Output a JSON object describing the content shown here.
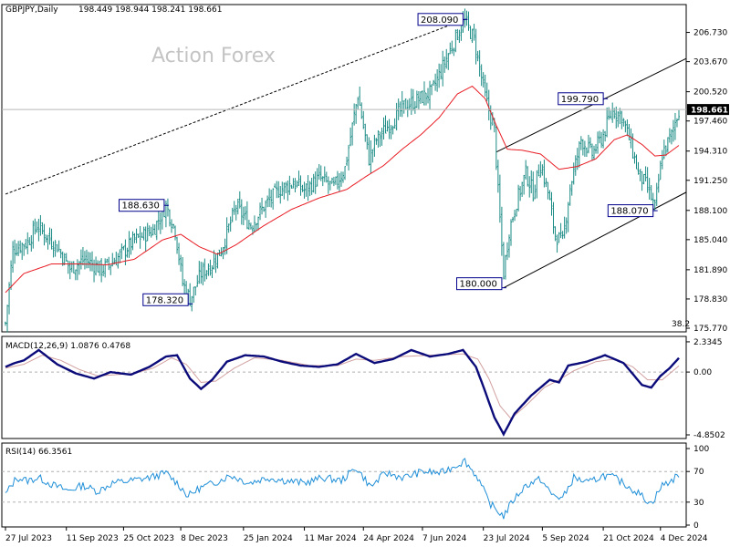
{
  "header": {
    "symbol_timeframe": "GBPJPY,Daily",
    "ohlc": "198.449 198.944 198.241 198.661"
  },
  "watermark": "Action Forex",
  "colors": {
    "price_bars": "#1a8a84",
    "ma": "#e81c24",
    "macd_main": "#0b0b7a",
    "macd_signal": "#d2a0a0",
    "rsi": "#1f8fd8",
    "trendline": "#000000",
    "current_price_bg": "#000000",
    "current_price_text": "#ffffff",
    "annotation_border": "#00008b"
  },
  "chart_data": [
    {
      "type": "candlestick",
      "panel": "price",
      "ylim": [
        175.77,
        208.5
      ],
      "yticks": [
        "206.730",
        "203.670",
        "200.520",
        "197.460",
        "194.310",
        "191.250",
        "188.100",
        "185.040",
        "181.890",
        "178.830",
        "175.770"
      ],
      "ytick_values": [
        206.73,
        203.67,
        200.52,
        197.46,
        194.31,
        191.25,
        188.1,
        185.04,
        181.89,
        178.83,
        175.77
      ],
      "current_price": "198.661",
      "current_price_value": 198.661,
      "overlay_label": "38.2",
      "x_date_labels": [
        "27 Jul 2023",
        "11 Sep 2023",
        "25 Oct 2023",
        "8 Dec 2023",
        "25 Jan 2024",
        "11 Mar 2024",
        "24 Apr 2024",
        "7 Jun 2024",
        "23 Jul 2024",
        "5 Sep 2024",
        "21 Oct 2024",
        "4 Dec 2024"
      ],
      "x_label_bar_index": [
        0,
        33,
        64,
        95,
        129,
        162,
        194,
        226,
        259,
        291,
        324,
        355
      ],
      "annotations": [
        {
          "label": "208.090",
          "bar": 249,
          "value": 208.09
        },
        {
          "label": "188.630",
          "bar": 87,
          "value": 188.63
        },
        {
          "label": "178.320",
          "bar": 100,
          "value": 178.32
        },
        {
          "label": "199.790",
          "bar": 325,
          "value": 199.79
        },
        {
          "label": "188.070",
          "bar": 352,
          "value": 188.07
        },
        {
          "label": "180.000",
          "bar": 270,
          "value": 180.0
        }
      ],
      "close_waypoints": [
        [
          0,
          176.3
        ],
        [
          4,
          184.0
        ],
        [
          12,
          184.8
        ],
        [
          17,
          186.5
        ],
        [
          28,
          184.3
        ],
        [
          35,
          182.0
        ],
        [
          43,
          183.0
        ],
        [
          52,
          181.9
        ],
        [
          60,
          183.0
        ],
        [
          70,
          185.0
        ],
        [
          80,
          186.0
        ],
        [
          87,
          188.6
        ],
        [
          92,
          186.0
        ],
        [
          96,
          180.5
        ],
        [
          100,
          178.8
        ],
        [
          106,
          181.5
        ],
        [
          112,
          182.5
        ],
        [
          117,
          184.0
        ],
        [
          125,
          188.5
        ],
        [
          133,
          186.5
        ],
        [
          140,
          188.5
        ],
        [
          148,
          190.2
        ],
        [
          156,
          191.0
        ],
        [
          162,
          190.2
        ],
        [
          170,
          191.5
        ],
        [
          178,
          190.5
        ],
        [
          184,
          192.5
        ],
        [
          191,
          200.2
        ],
        [
          197,
          193.5
        ],
        [
          201,
          195.5
        ],
        [
          210,
          197.5
        ],
        [
          216,
          199.0
        ],
        [
          222,
          199.5
        ],
        [
          231,
          200.5
        ],
        [
          239,
          204.0
        ],
        [
          245,
          206.6
        ],
        [
          249,
          207.9
        ],
        [
          254,
          206.0
        ],
        [
          260,
          200.0
        ],
        [
          265,
          196.5
        ],
        [
          267,
          190.0
        ],
        [
          270,
          181.5
        ],
        [
          273,
          186.0
        ],
        [
          277,
          189.0
        ],
        [
          282,
          192.0
        ],
        [
          286,
          190.0
        ],
        [
          290,
          193.0
        ],
        [
          294,
          190.0
        ],
        [
          298,
          185.5
        ],
        [
          302,
          184.8
        ],
        [
          306,
          190.5
        ],
        [
          312,
          195.5
        ],
        [
          318,
          194.0
        ],
        [
          324,
          196.0
        ],
        [
          329,
          198.6
        ],
        [
          334,
          198.0
        ],
        [
          339,
          195.0
        ],
        [
          343,
          192.0
        ],
        [
          348,
          190.5
        ],
        [
          352,
          188.3
        ],
        [
          356,
          194.0
        ],
        [
          361,
          196.0
        ],
        [
          365,
          198.661
        ]
      ],
      "ma_waypoints": [
        [
          0,
          179.5
        ],
        [
          10,
          181.5
        ],
        [
          25,
          182.5
        ],
        [
          40,
          182.5
        ],
        [
          55,
          182.4
        ],
        [
          70,
          183.0
        ],
        [
          85,
          185.0
        ],
        [
          95,
          185.6
        ],
        [
          105,
          184.3
        ],
        [
          115,
          183.5
        ],
        [
          125,
          184.5
        ],
        [
          140,
          186.5
        ],
        [
          155,
          188.2
        ],
        [
          170,
          189.4
        ],
        [
          185,
          190.3
        ],
        [
          195,
          191.6
        ],
        [
          205,
          192.8
        ],
        [
          215,
          194.5
        ],
        [
          225,
          196.0
        ],
        [
          235,
          197.8
        ],
        [
          245,
          200.3
        ],
        [
          253,
          201.1
        ],
        [
          260,
          199.8
        ],
        [
          266,
          197.0
        ],
        [
          272,
          194.5
        ],
        [
          280,
          194.4
        ],
        [
          290,
          194.0
        ],
        [
          300,
          192.4
        ],
        [
          310,
          192.7
        ],
        [
          320,
          193.5
        ],
        [
          330,
          195.5
        ],
        [
          337,
          196.0
        ],
        [
          345,
          195.0
        ],
        [
          352,
          193.8
        ],
        [
          358,
          193.9
        ],
        [
          365,
          194.9
        ]
      ],
      "trendlines": [
        {
          "style": "dashed",
          "from": [
            0,
            189.8
          ],
          "to": [
            249,
            208.09
          ]
        },
        {
          "style": "solid",
          "from": [
            270,
            180.0
          ],
          "to": [
            372,
            190.0
          ]
        },
        {
          "style": "solid",
          "from": [
            266,
            194.2
          ],
          "to": [
            372,
            204.0
          ]
        }
      ]
    },
    {
      "type": "line",
      "panel": "macd",
      "label": "MACD(12,26,9) 1.0876 0.4768",
      "ylim": [
        -4.85,
        2.33
      ],
      "yticks": [
        "2.3345",
        "0.00",
        "-4.8502"
      ],
      "ytick_values": [
        2.3345,
        0.0,
        -4.8502
      ],
      "main_waypoints": [
        [
          0,
          0.4
        ],
        [
          5,
          0.7
        ],
        [
          10,
          0.9
        ],
        [
          18,
          1.7
        ],
        [
          28,
          0.6
        ],
        [
          38,
          -0.1
        ],
        [
          48,
          -0.5
        ],
        [
          57,
          -0.0
        ],
        [
          68,
          -0.2
        ],
        [
          78,
          0.4
        ],
        [
          87,
          1.2
        ],
        [
          93,
          1.3
        ],
        [
          100,
          -0.5
        ],
        [
          106,
          -1.3
        ],
        [
          112,
          -0.6
        ],
        [
          120,
          0.8
        ],
        [
          130,
          1.3
        ],
        [
          140,
          1.2
        ],
        [
          150,
          0.8
        ],
        [
          160,
          0.5
        ],
        [
          170,
          0.4
        ],
        [
          180,
          0.6
        ],
        [
          190,
          1.4
        ],
        [
          200,
          0.7
        ],
        [
          210,
          1.0
        ],
        [
          220,
          1.7
        ],
        [
          230,
          1.2
        ],
        [
          240,
          1.4
        ],
        [
          248,
          1.7
        ],
        [
          255,
          0.4
        ],
        [
          260,
          -1.5
        ],
        [
          265,
          -3.5
        ],
        [
          270,
          -4.8
        ],
        [
          276,
          -3.2
        ],
        [
          285,
          -1.8
        ],
        [
          295,
          -0.6
        ],
        [
          300,
          -0.8
        ],
        [
          305,
          0.5
        ],
        [
          315,
          0.8
        ],
        [
          325,
          1.3
        ],
        [
          335,
          0.7
        ],
        [
          345,
          -1.0
        ],
        [
          350,
          -1.2
        ],
        [
          355,
          -0.3
        ],
        [
          360,
          0.3
        ],
        [
          365,
          1.09
        ]
      ],
      "signal_waypoints": [
        [
          0,
          0.3
        ],
        [
          10,
          0.6
        ],
        [
          20,
          1.3
        ],
        [
          30,
          0.9
        ],
        [
          40,
          0.2
        ],
        [
          50,
          -0.3
        ],
        [
          60,
          -0.2
        ],
        [
          70,
          -0.1
        ],
        [
          80,
          0.3
        ],
        [
          90,
          1.1
        ],
        [
          98,
          0.6
        ],
        [
          106,
          -0.8
        ],
        [
          114,
          -0.7
        ],
        [
          124,
          0.3
        ],
        [
          135,
          1.1
        ],
        [
          150,
          0.9
        ],
        [
          165,
          0.5
        ],
        [
          180,
          0.5
        ],
        [
          190,
          1.0
        ],
        [
          200,
          0.9
        ],
        [
          215,
          1.2
        ],
        [
          230,
          1.3
        ],
        [
          248,
          1.4
        ],
        [
          256,
          1.0
        ],
        [
          262,
          -0.5
        ],
        [
          268,
          -2.6
        ],
        [
          274,
          -3.6
        ],
        [
          282,
          -2.6
        ],
        [
          292,
          -1.2
        ],
        [
          300,
          -0.6
        ],
        [
          308,
          0.1
        ],
        [
          320,
          0.8
        ],
        [
          330,
          1.0
        ],
        [
          340,
          0.4
        ],
        [
          348,
          -0.6
        ],
        [
          356,
          -0.6
        ],
        [
          365,
          0.48
        ]
      ]
    },
    {
      "type": "line",
      "panel": "rsi",
      "label": "RSI(14) 66.3561",
      "ylim": [
        0,
        100
      ],
      "yticks": [
        "100",
        "70",
        "30",
        "0"
      ],
      "ytick_values": [
        100,
        70,
        30,
        0
      ],
      "waypoints": [
        [
          0,
          40
        ],
        [
          6,
          62
        ],
        [
          12,
          58
        ],
        [
          18,
          62
        ],
        [
          26,
          52
        ],
        [
          34,
          45
        ],
        [
          42,
          52
        ],
        [
          50,
          44
        ],
        [
          58,
          55
        ],
        [
          68,
          58
        ],
        [
          78,
          62
        ],
        [
          87,
          68
        ],
        [
          93,
          55
        ],
        [
          99,
          38
        ],
        [
          105,
          48
        ],
        [
          113,
          55
        ],
        [
          122,
          65
        ],
        [
          132,
          55
        ],
        [
          142,
          62
        ],
        [
          152,
          58
        ],
        [
          162,
          55
        ],
        [
          172,
          62
        ],
        [
          182,
          58
        ],
        [
          190,
          75
        ],
        [
          198,
          50
        ],
        [
          206,
          68
        ],
        [
          216,
          62
        ],
        [
          226,
          70
        ],
        [
          236,
          68
        ],
        [
          244,
          78
        ],
        [
          249,
          84
        ],
        [
          256,
          62
        ],
        [
          262,
          30
        ],
        [
          266,
          20
        ],
        [
          270,
          12
        ],
        [
          275,
          32
        ],
        [
          282,
          52
        ],
        [
          290,
          60
        ],
        [
          296,
          40
        ],
        [
          302,
          35
        ],
        [
          308,
          62
        ],
        [
          316,
          55
        ],
        [
          324,
          65
        ],
        [
          330,
          62
        ],
        [
          338,
          50
        ],
        [
          344,
          40
        ],
        [
          350,
          28
        ],
        [
          356,
          52
        ],
        [
          361,
          58
        ],
        [
          365,
          66.36
        ]
      ]
    }
  ]
}
